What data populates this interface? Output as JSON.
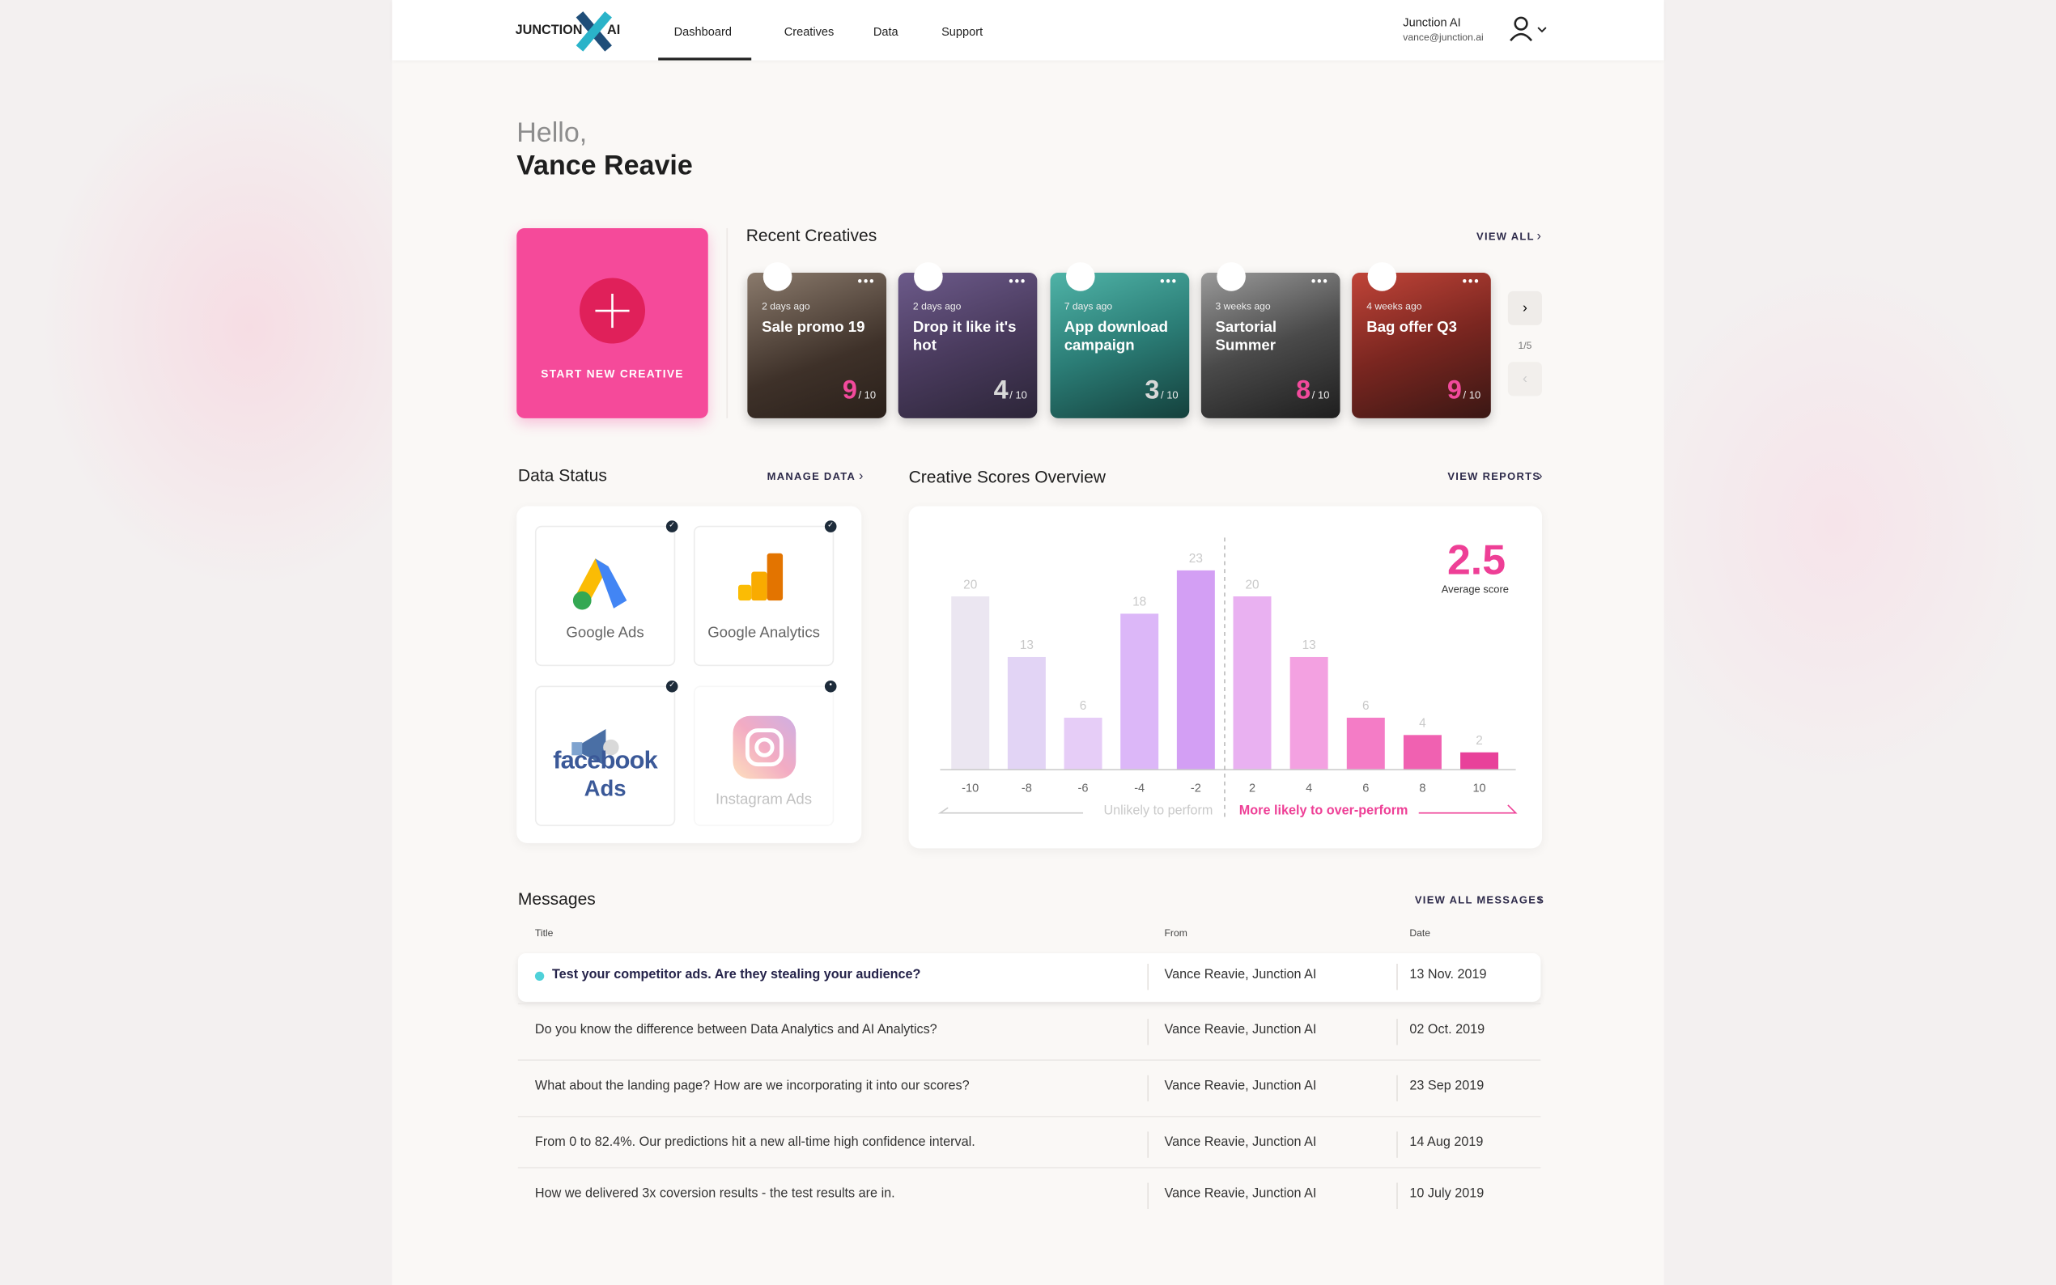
{
  "nav": {
    "logo_left": "JUNCTION",
    "logo_right": "AI",
    "links": [
      "Dashboard",
      "Creatives",
      "Data",
      "Support"
    ],
    "user_name": "Junction AI",
    "user_email": "vance@junction.ai"
  },
  "greeting": {
    "hello": "Hello,",
    "name": "Vance Reavie"
  },
  "new_creative": {
    "label": "START NEW CREATIVE"
  },
  "recent": {
    "title": "Recent Creatives",
    "link": "VIEW ALL",
    "pager": "1/5",
    "score_suffix": "/ 10",
    "cards": [
      {
        "age": "2 days ago",
        "title": "Sale promo 19",
        "score": 9
      },
      {
        "age": "2 days ago",
        "title": "Drop it like it's hot",
        "score": 4
      },
      {
        "age": "7 days ago",
        "title": "App download campaign",
        "score": 3
      },
      {
        "age": "3 weeks ago",
        "title": "Sartorial Summer",
        "score": 8
      },
      {
        "age": "4 weeks ago",
        "title": "Bag offer Q3",
        "score": 9
      }
    ]
  },
  "data_status": {
    "title": "Data Status",
    "link": "MANAGE DATA",
    "sources": [
      {
        "name": "Google Ads"
      },
      {
        "name": "Google Analytics"
      },
      {
        "name": "facebook",
        "sub": "Ads"
      },
      {
        "name": "Instagram Ads"
      }
    ]
  },
  "scores": {
    "title": "Creative Scores Overview",
    "link": "VIEW REPORTS",
    "average": 2.5,
    "average_label": "Average score",
    "categories": [
      -10,
      -8,
      -6,
      -4,
      -2,
      2,
      4,
      6,
      8,
      10
    ],
    "values": [
      20,
      13,
      6,
      18,
      23,
      20,
      13,
      6,
      4,
      2
    ],
    "colors": [
      "#ebe6f1",
      "#e2d4f5",
      "#e6cdf7",
      "#dcb7f8",
      "#d39ff4",
      "#e9b1f1",
      "#f3a1e1",
      "#f47cc6",
      "#f061b1",
      "#e8419a"
    ],
    "left_caption": "Unlikely to perform",
    "right_caption": "More likely to over-perform"
  },
  "messages": {
    "title": "Messages",
    "link": "VIEW ALL MESSAGES",
    "columns": [
      "Title",
      "From",
      "Date"
    ],
    "rows": [
      {
        "title": "Test your competitor ads. Are they stealing your audience?",
        "from": "Vance Reavie, Junction AI",
        "date": "13 Nov. 2019",
        "unread": true
      },
      {
        "title": "Do you know the difference between Data Analytics and AI Analytics?",
        "from": "Vance Reavie, Junction AI",
        "date": "02 Oct. 2019",
        "unread": false
      },
      {
        "title": "What about the landing page? How are we incorporating it into our scores?",
        "from": "Vance Reavie, Junction AI",
        "date": "23 Sep 2019",
        "unread": false
      },
      {
        "title": "From 0 to 82.4%. Our predictions hit a new all-time high confidence interval.",
        "from": "Vance Reavie, Junction AI",
        "date": "14 Aug 2019",
        "unread": false
      },
      {
        "title": "How we delivered 3x coversion results - the test results are in.",
        "from": "Vance Reavie, Junction AI",
        "date": "10 July 2019",
        "unread": false
      }
    ]
  }
}
